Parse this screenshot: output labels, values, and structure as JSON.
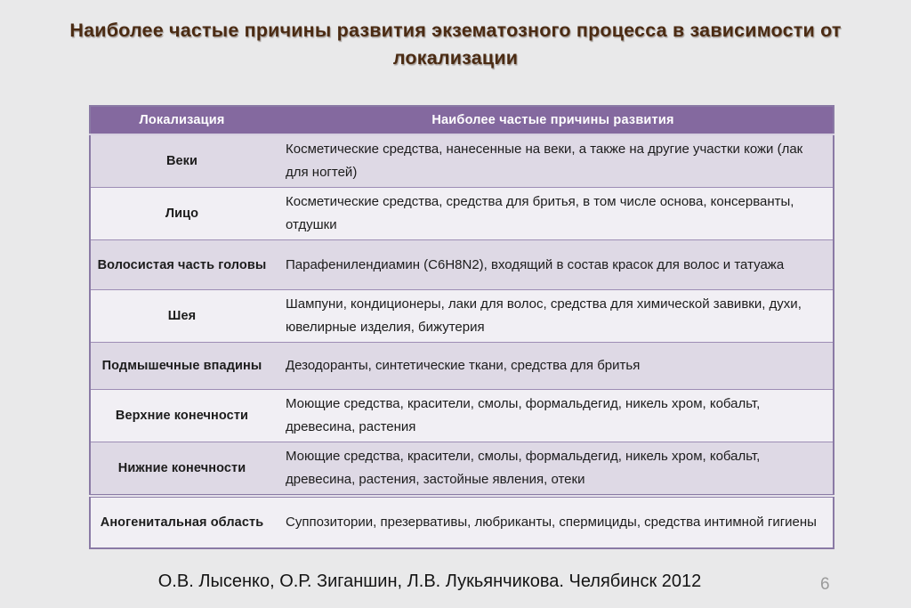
{
  "slide": {
    "title": "Наиболее частые причины развития экзематозного процесса в зависимости от локализации",
    "footer": "О.В. Лысенко, О.Р. Зиганшин, Л.В. Лукьянчикова. Челябинск 2012",
    "page_number": "6"
  },
  "table": {
    "headers": [
      "Локализация",
      "Наиболее частые причины развития"
    ],
    "rows": [
      {
        "location": "Веки",
        "causes": "Косметические средства, нанесенные на веки, а также на другие участки кожи (лак для ногтей)"
      },
      {
        "location": "Лицо",
        "causes": "Косметические средства, средства для бритья, в том числе основа, консерванты, отдушки"
      },
      {
        "location": "Волосистая часть головы",
        "causes": "Парафенилендиамин (C6H8N2), входящий в состав красок для волос и татуажа"
      },
      {
        "location": "Шея",
        "causes": "Шампуни, кондиционеры, лаки для волос, средства для химической завивки, духи, ювелирные изделия, бижутерия"
      },
      {
        "location": "Подмышечные впадины",
        "causes": "Дезодоранты, синтетические ткани, средства для бритья"
      },
      {
        "location": "Верхние конечности",
        "causes": "Моющие средства, красители, смолы, формальдегид, никель хром, кобальт, древесина, растения"
      },
      {
        "location": "Нижние конечности",
        "causes": "Моющие средства, красители, смолы, формальдегид, никель хром, кобальт, древесина, растения, застойные явления, отеки"
      },
      {
        "location": "Аногенитальная область",
        "causes": "Суппозитории, презервативы, любриканты, спермициды, средства интимной гигиены"
      }
    ]
  },
  "colors": {
    "slide_background": "#e9e9ea",
    "title_text": "#4b2b13",
    "table_header_bg": "#84699f",
    "table_header_text": "#ffffff",
    "row_odd_bg": "#ded9e5",
    "row_even_bg": "#f1eff4",
    "table_border": "#8a7aa5",
    "page_number_text": "#9b9b9b"
  }
}
